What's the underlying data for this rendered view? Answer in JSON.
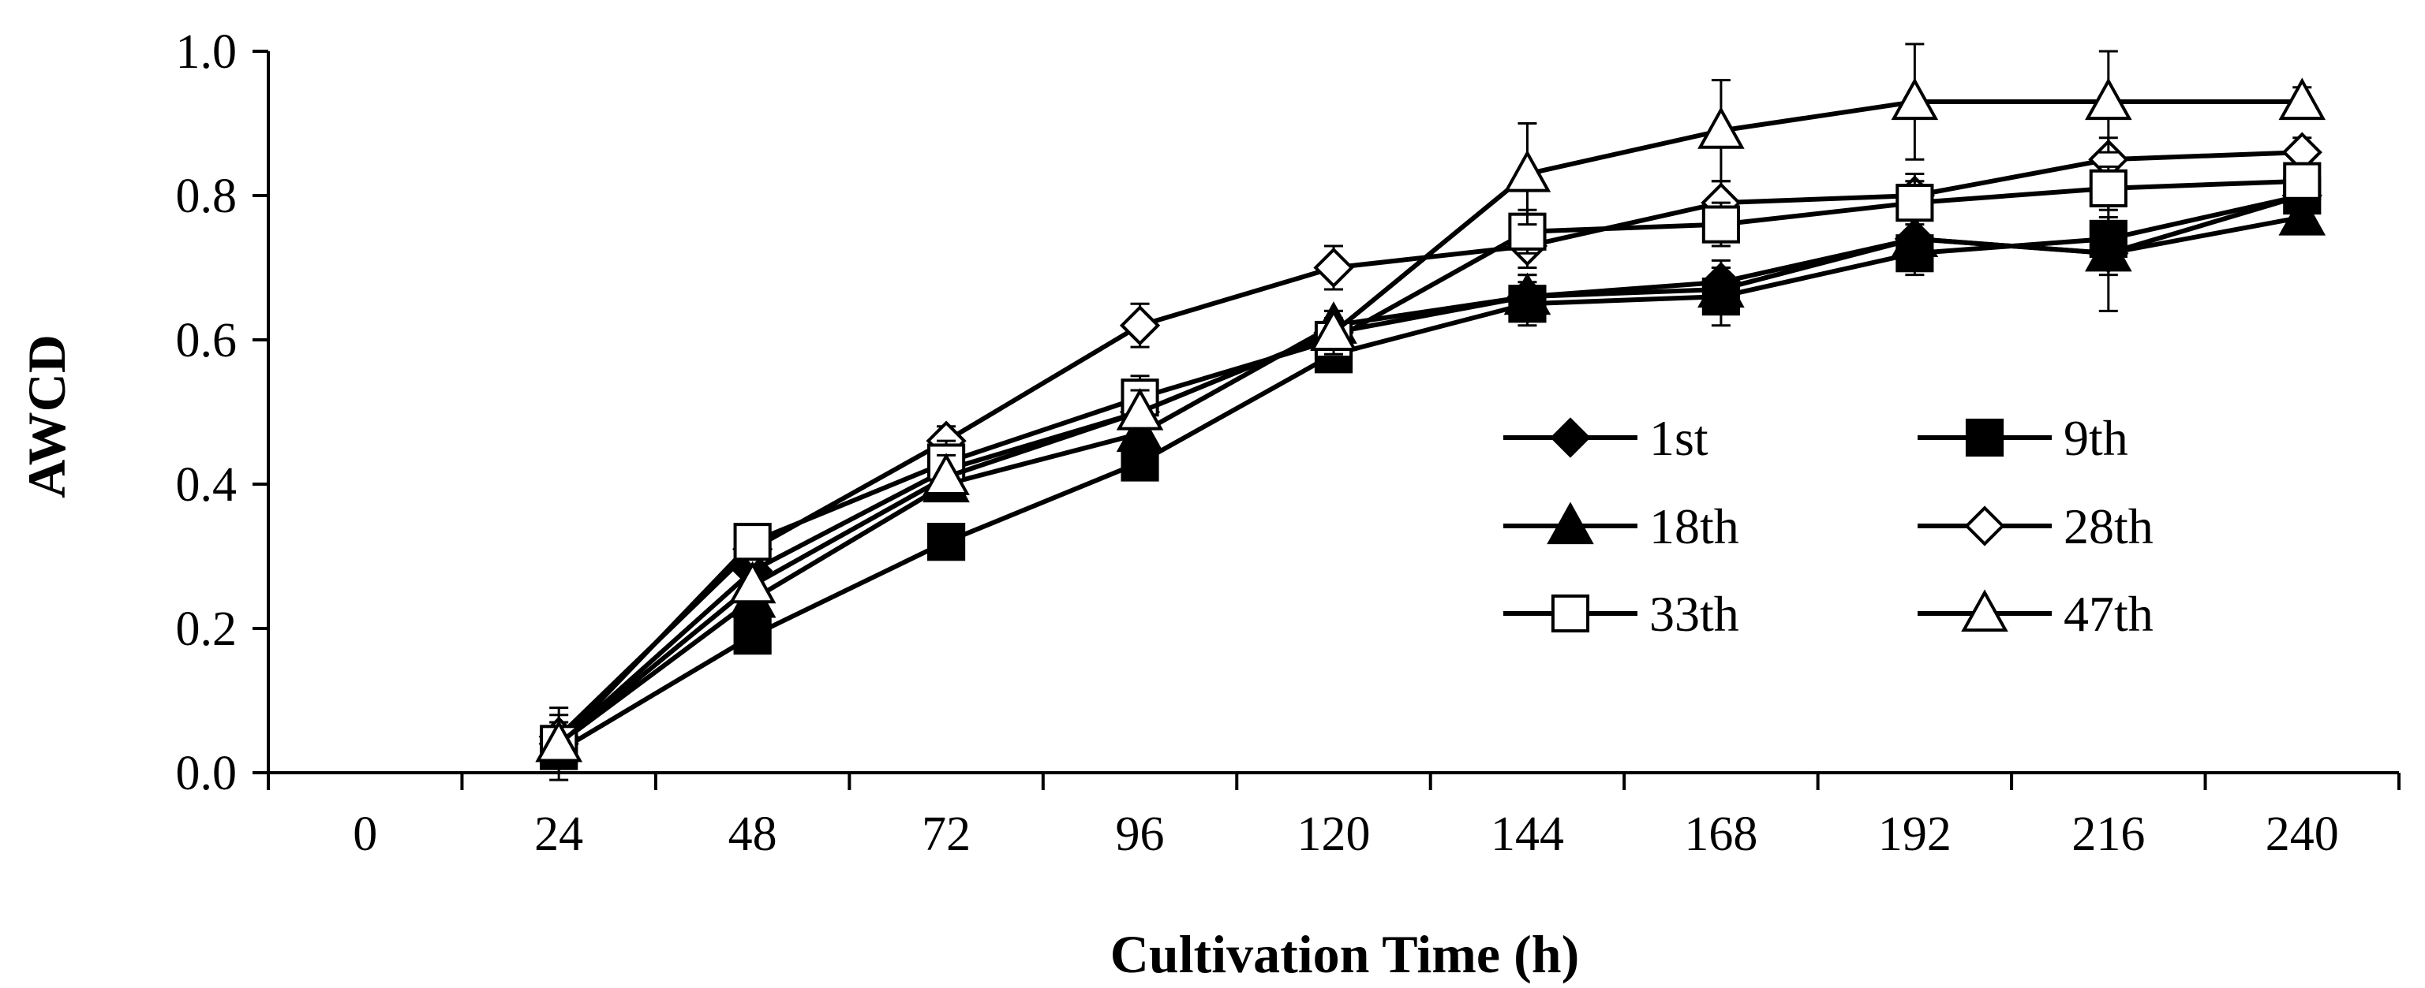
{
  "chart_data": {
    "type": "line",
    "title": "",
    "xlabel": "Cultivation Time (h)",
    "ylabel": "AWCD",
    "x_categories": [
      0,
      24,
      48,
      72,
      96,
      120,
      144,
      168,
      192,
      216,
      240
    ],
    "x_tick_labels": [
      "0",
      "24",
      "48",
      "72",
      "96",
      "120",
      "144",
      "168",
      "192",
      "216",
      "240"
    ],
    "y_tick_labels": [
      "0.0",
      "0.2",
      "0.4",
      "0.6",
      "0.8",
      "1.0"
    ],
    "ylim": [
      0,
      1.0
    ],
    "y_ticks": [
      0,
      0.2,
      0.4,
      0.6,
      0.8,
      1.0
    ],
    "legend_position": "right-middle",
    "color": "#000000",
    "series": [
      {
        "name": "1st",
        "marker": "diamond-filled",
        "x": [
          24,
          48,
          72,
          96,
          120,
          144,
          168,
          192,
          216,
          240
        ],
        "values": [
          0.04,
          0.28,
          0.42,
          0.5,
          0.61,
          0.66,
          0.68,
          0.74,
          0.72,
          0.8
        ],
        "errors": [
          0.03,
          0.02,
          0.02,
          0.02,
          0.02,
          0.03,
          0.03,
          0.03,
          0.03,
          0.02
        ]
      },
      {
        "name": "9th",
        "marker": "square-filled",
        "x": [
          24,
          48,
          72,
          96,
          120,
          144,
          168,
          192,
          216,
          240
        ],
        "values": [
          0.03,
          0.19,
          0.32,
          0.43,
          0.58,
          0.65,
          0.66,
          0.72,
          0.74,
          0.8
        ],
        "errors": [
          0.02,
          0.02,
          0.02,
          0.02,
          0.02,
          0.03,
          0.04,
          0.03,
          0.03,
          0.02
        ]
      },
      {
        "name": "18th",
        "marker": "triangle-filled",
        "x": [
          24,
          48,
          72,
          96,
          120,
          144,
          168,
          192,
          216,
          240
        ],
        "values": [
          0.04,
          0.24,
          0.4,
          0.47,
          0.62,
          0.66,
          0.67,
          0.74,
          0.72,
          0.77
        ],
        "errors": [
          0.02,
          0.02,
          0.02,
          0.03,
          0.02,
          0.03,
          0.03,
          0.03,
          0.08,
          0.02
        ]
      },
      {
        "name": "28th",
        "marker": "diamond-open",
        "x": [
          24,
          48,
          72,
          96,
          120,
          144,
          168,
          192,
          216,
          240
        ],
        "values": [
          0.05,
          0.31,
          0.46,
          0.62,
          0.7,
          0.73,
          0.79,
          0.8,
          0.85,
          0.86
        ],
        "errors": [
          0.03,
          0.02,
          0.02,
          0.03,
          0.03,
          0.03,
          0.03,
          0.03,
          0.03,
          0.02
        ]
      },
      {
        "name": "33th",
        "marker": "square-open",
        "x": [
          24,
          48,
          72,
          96,
          120,
          144,
          168,
          192,
          216,
          240
        ],
        "values": [
          0.04,
          0.32,
          0.43,
          0.52,
          0.6,
          0.75,
          0.76,
          0.79,
          0.81,
          0.82
        ],
        "errors": [
          0.02,
          0.02,
          0.03,
          0.03,
          0.03,
          0.03,
          0.03,
          0.03,
          0.03,
          0.02
        ]
      },
      {
        "name": "47th",
        "marker": "triangle-open",
        "x": [
          24,
          48,
          72,
          96,
          120,
          144,
          168,
          192,
          216,
          240
        ],
        "values": [
          0.04,
          0.26,
          0.41,
          0.5,
          0.61,
          0.83,
          0.89,
          0.93,
          0.93,
          0.93
        ],
        "errors": [
          0.05,
          0.02,
          0.03,
          0.03,
          0.03,
          0.07,
          0.07,
          0.08,
          0.07,
          0.02
        ]
      }
    ]
  }
}
